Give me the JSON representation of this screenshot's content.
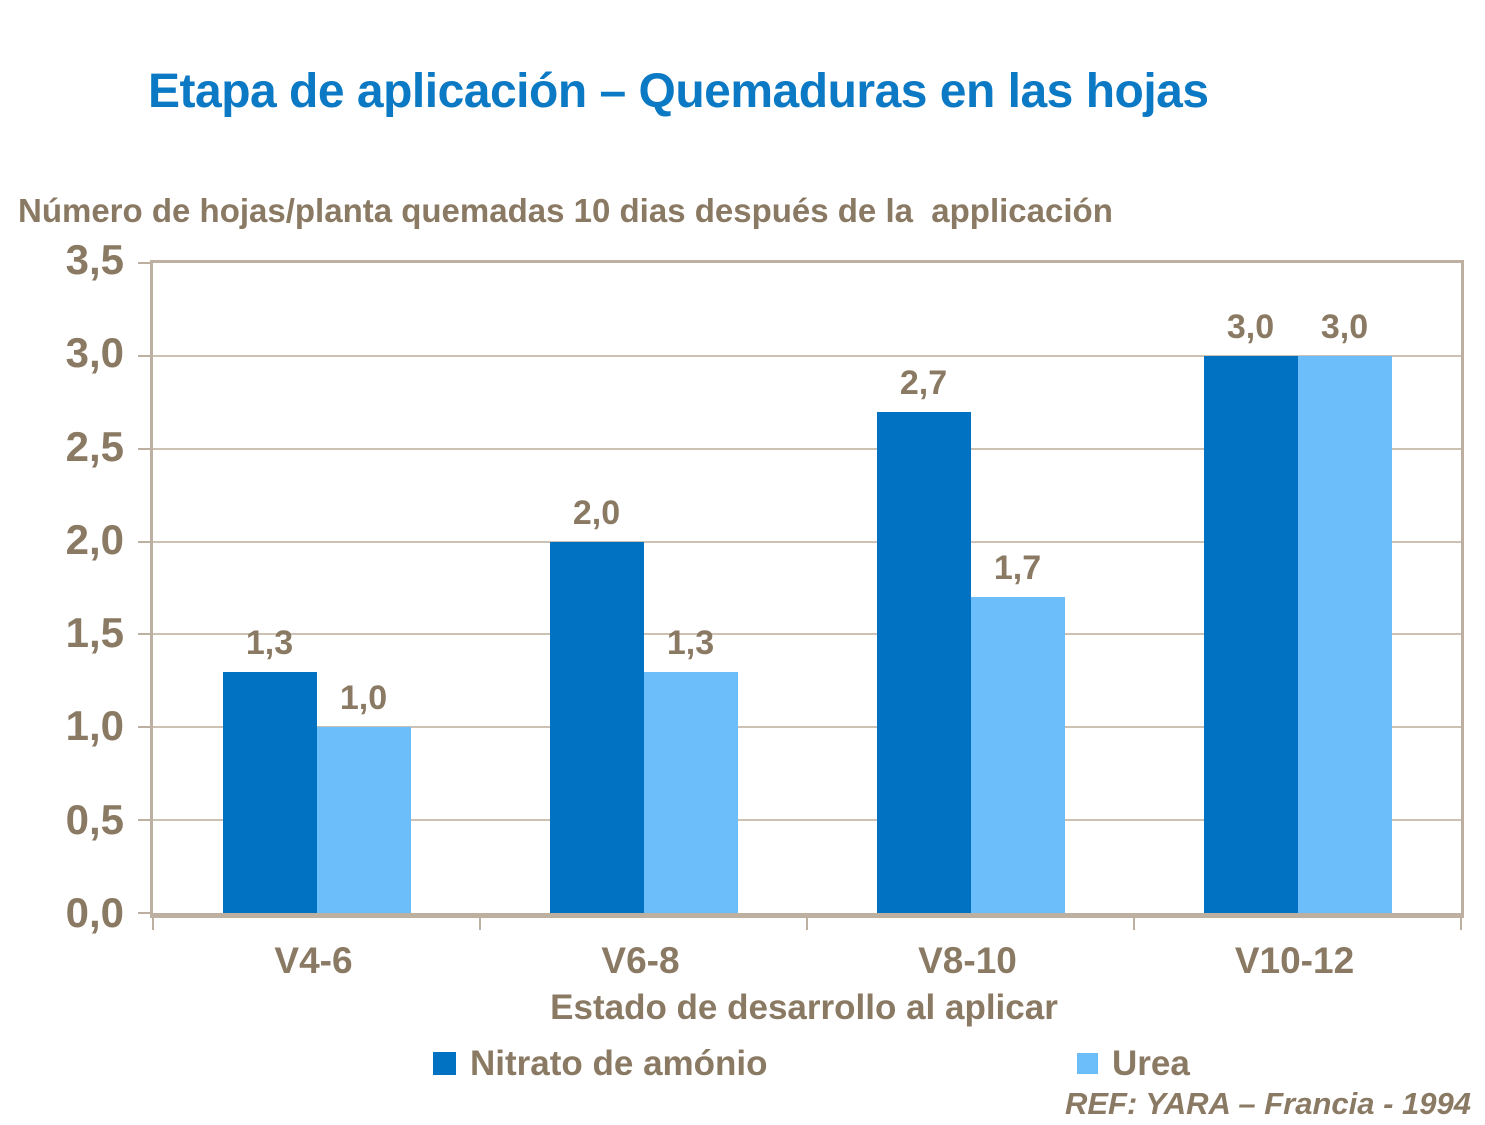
{
  "title": "Etapa de aplicación – Quemaduras en las hojas",
  "y_axis_title": "Número de hojas/planta quemadas 10 dias después de la  applicación",
  "reference": "REF: YARA – Francia - 1994",
  "colors": {
    "title": "#0B79C3",
    "text_brown": "#8A7963",
    "axis_line": "#BDB0A0",
    "gridline": "#CCC1B2",
    "series_nitrato": "#0072C1",
    "series_urea": "#6CBEFA",
    "background": "#FFFFFF"
  },
  "chart_data": {
    "type": "bar",
    "title": "Etapa de aplicación – Quemaduras en las hojas",
    "categories": [
      "V4-6",
      "V6-8",
      "V8-10",
      "V10-12"
    ],
    "series": [
      {
        "name": "Nitrato de amónio",
        "color": "#0072C1",
        "values": [
          1.3,
          2.0,
          2.7,
          3.0
        ],
        "value_labels": [
          "1,3",
          "2,0",
          "2,7",
          "3,0"
        ]
      },
      {
        "name": "Urea",
        "color": "#6CBEFA",
        "values": [
          1.0,
          1.3,
          1.7,
          3.0
        ],
        "value_labels": [
          "1,0",
          "1,3",
          "1,7",
          "3,0"
        ]
      }
    ],
    "xlabel": "Estado de desarrollo al aplicar",
    "ylabel": "Número de hojas/planta quemadas 10 dias después de la  applicación",
    "ylim": [
      0,
      3.5
    ],
    "yticks": [
      {
        "value": 0.0,
        "label": "0,0"
      },
      {
        "value": 0.5,
        "label": "0,5"
      },
      {
        "value": 1.0,
        "label": "1,0"
      },
      {
        "value": 1.5,
        "label": "1,5"
      },
      {
        "value": 2.0,
        "label": "2,0"
      },
      {
        "value": 2.5,
        "label": "2,5"
      },
      {
        "value": 3.0,
        "label": "3,0"
      },
      {
        "value": 3.5,
        "label": "3,5"
      }
    ],
    "grid": true,
    "legend_position": "bottom",
    "decimal_separator": ","
  }
}
